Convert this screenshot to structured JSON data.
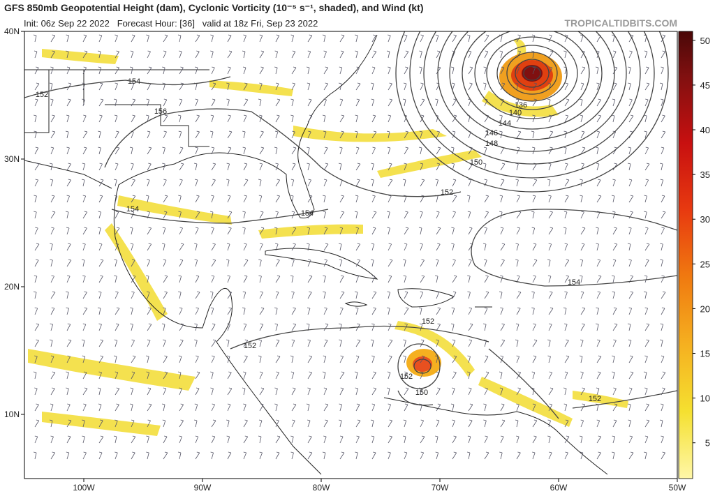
{
  "header": {
    "title": "GFS 850mb Geopotential Height (dam), Cyclonic Vorticity (10⁻⁵ s⁻¹, shaded), and Wind (kt)",
    "subtitle": "Init: 06z Sep 22 2022   Forecast Hour: [36]   valid at 18z Fri, Sep 23 2022",
    "brand": "TROPICALTIDBITS.COM"
  },
  "axes": {
    "lat": [
      {
        "value": 40,
        "label": "40N"
      },
      {
        "value": 30,
        "label": "30N"
      },
      {
        "value": 20,
        "label": "20N"
      },
      {
        "value": 10,
        "label": "10N"
      }
    ],
    "lon": [
      {
        "value": -100,
        "label": "100W"
      },
      {
        "value": -90,
        "label": "90W"
      },
      {
        "value": -80,
        "label": "80W"
      },
      {
        "value": -70,
        "label": "70W"
      },
      {
        "value": -60,
        "label": "60W"
      },
      {
        "value": -50,
        "label": "50W"
      }
    ]
  },
  "colorbar": {
    "range": [
      1,
      51
    ],
    "ticks": [
      5,
      10,
      15,
      20,
      25,
      30,
      35,
      40,
      45,
      50
    ]
  },
  "contour_labels": [
    "152",
    "154",
    "156",
    "154",
    "154",
    "152",
    "150",
    "148",
    "146",
    "144",
    "140",
    "136",
    "152",
    "154",
    "152",
    "152",
    "150",
    "152"
  ]
}
